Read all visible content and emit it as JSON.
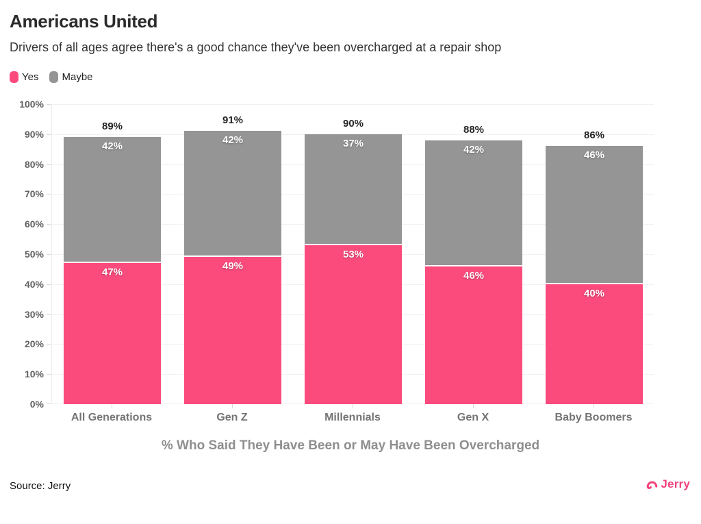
{
  "header": {
    "title": "Americans United",
    "subtitle": "Drivers of all ages agree there's a good chance they've been overcharged at a repair shop"
  },
  "chart_data": {
    "type": "bar",
    "stacked": true,
    "categories": [
      "All Generations",
      "Gen Z",
      "Millennials",
      "Gen X",
      "Baby Boomers"
    ],
    "series": [
      {
        "name": "Yes",
        "color": "#fb4b7d",
        "values": [
          47,
          49,
          53,
          46,
          40
        ]
      },
      {
        "name": "Maybe",
        "color": "#959595",
        "values": [
          42,
          42,
          37,
          42,
          46
        ]
      }
    ],
    "totals": [
      89,
      91,
      90,
      88,
      86
    ],
    "total_labels": [
      "89%",
      "91%",
      "90%",
      "88%",
      "86%"
    ],
    "y_ticks": [
      "0%",
      "10%",
      "20%",
      "30%",
      "40%",
      "50%",
      "60%",
      "70%",
      "80%",
      "90%",
      "100%"
    ],
    "ylim": [
      0,
      100
    ],
    "grid": "horizontal",
    "legend_position": "top-left",
    "xlabel": "% Who Said They Have Been or May Have Been Overcharged",
    "title": "Americans United",
    "subtitle": "Drivers of all ages agree there's a good chance they've been overcharged at a repair shop"
  },
  "footer": {
    "source": "Source: Jerry",
    "logo_text": "Jerry"
  },
  "colors": {
    "yes": "#fb4b7d",
    "maybe": "#959595",
    "logo": "#f2437c",
    "grid": "#f1f1f3",
    "axis": "#ececec",
    "tick": "#d9d9d9"
  }
}
